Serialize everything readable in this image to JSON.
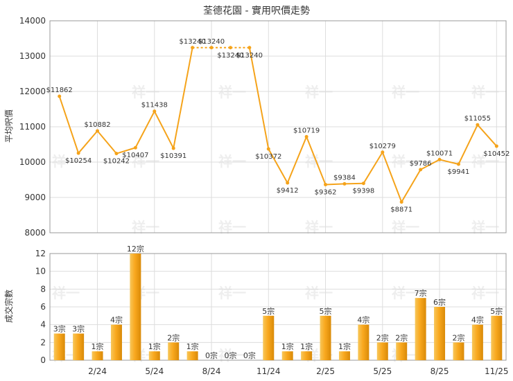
{
  "chart_data": [
    {
      "type": "line",
      "title": "荃德花園 - 實用呎價走勢",
      "ylabel": "平均呎價",
      "ylim": [
        8000,
        14000
      ],
      "yticks": [
        8000,
        9000,
        10000,
        11000,
        12000,
        13000,
        14000
      ],
      "grid": true,
      "color": "#f5a31a",
      "series": [
        {
          "values": [
            11862,
            10254,
            10882,
            10242,
            10407,
            11438,
            10391,
            13240,
            13240,
            13240,
            13240,
            10372,
            9412,
            10719,
            9362,
            9384,
            9398,
            10279,
            8871,
            9786,
            10071,
            9941,
            11055,
            10452
          ],
          "labels": [
            "$11862",
            "$10254",
            "$10882",
            "$10242",
            "$10407",
            "$11438",
            "$10391",
            "$13240",
            "$13240",
            "$13240",
            "$13240",
            "$10372",
            "$9412",
            "$10719",
            "$9362",
            "$9384",
            "$9398",
            "$10279",
            "$8871",
            "$9786",
            "$10071",
            "$9941",
            "$11055",
            "$10452"
          ]
        }
      ]
    },
    {
      "type": "bar",
      "ylabel": "成交宗數",
      "ylim": [
        0,
        12
      ],
      "yticks": [
        0,
        2,
        4,
        6,
        8,
        10,
        12
      ],
      "grid": true,
      "color": "#f5a31a",
      "xtick_labels": [
        "2/24",
        "5/24",
        "8/24",
        "11/24",
        "2/25",
        "5/25",
        "8/25",
        "11/25"
      ],
      "xtick_positions": [
        2,
        5,
        8,
        11,
        14,
        17,
        20,
        23
      ],
      "series": [
        {
          "values": [
            3,
            3,
            1,
            4,
            12,
            1,
            2,
            1,
            0,
            0,
            0,
            5,
            1,
            1,
            5,
            1,
            4,
            2,
            2,
            7,
            6,
            2,
            4,
            5
          ],
          "labels": [
            "3宗",
            "3宗",
            "1宗",
            "4宗",
            "12宗",
            "1宗",
            "2宗",
            "1宗",
            "0宗",
            "0宗",
            "0宗",
            "5宗",
            "1宗",
            "1宗",
            "5宗",
            "1宗",
            "4宗",
            "2宗",
            "2宗",
            "7宗",
            "6宗",
            "2宗",
            "4宗",
            "5宗"
          ]
        }
      ]
    }
  ],
  "watermark": "祥一"
}
